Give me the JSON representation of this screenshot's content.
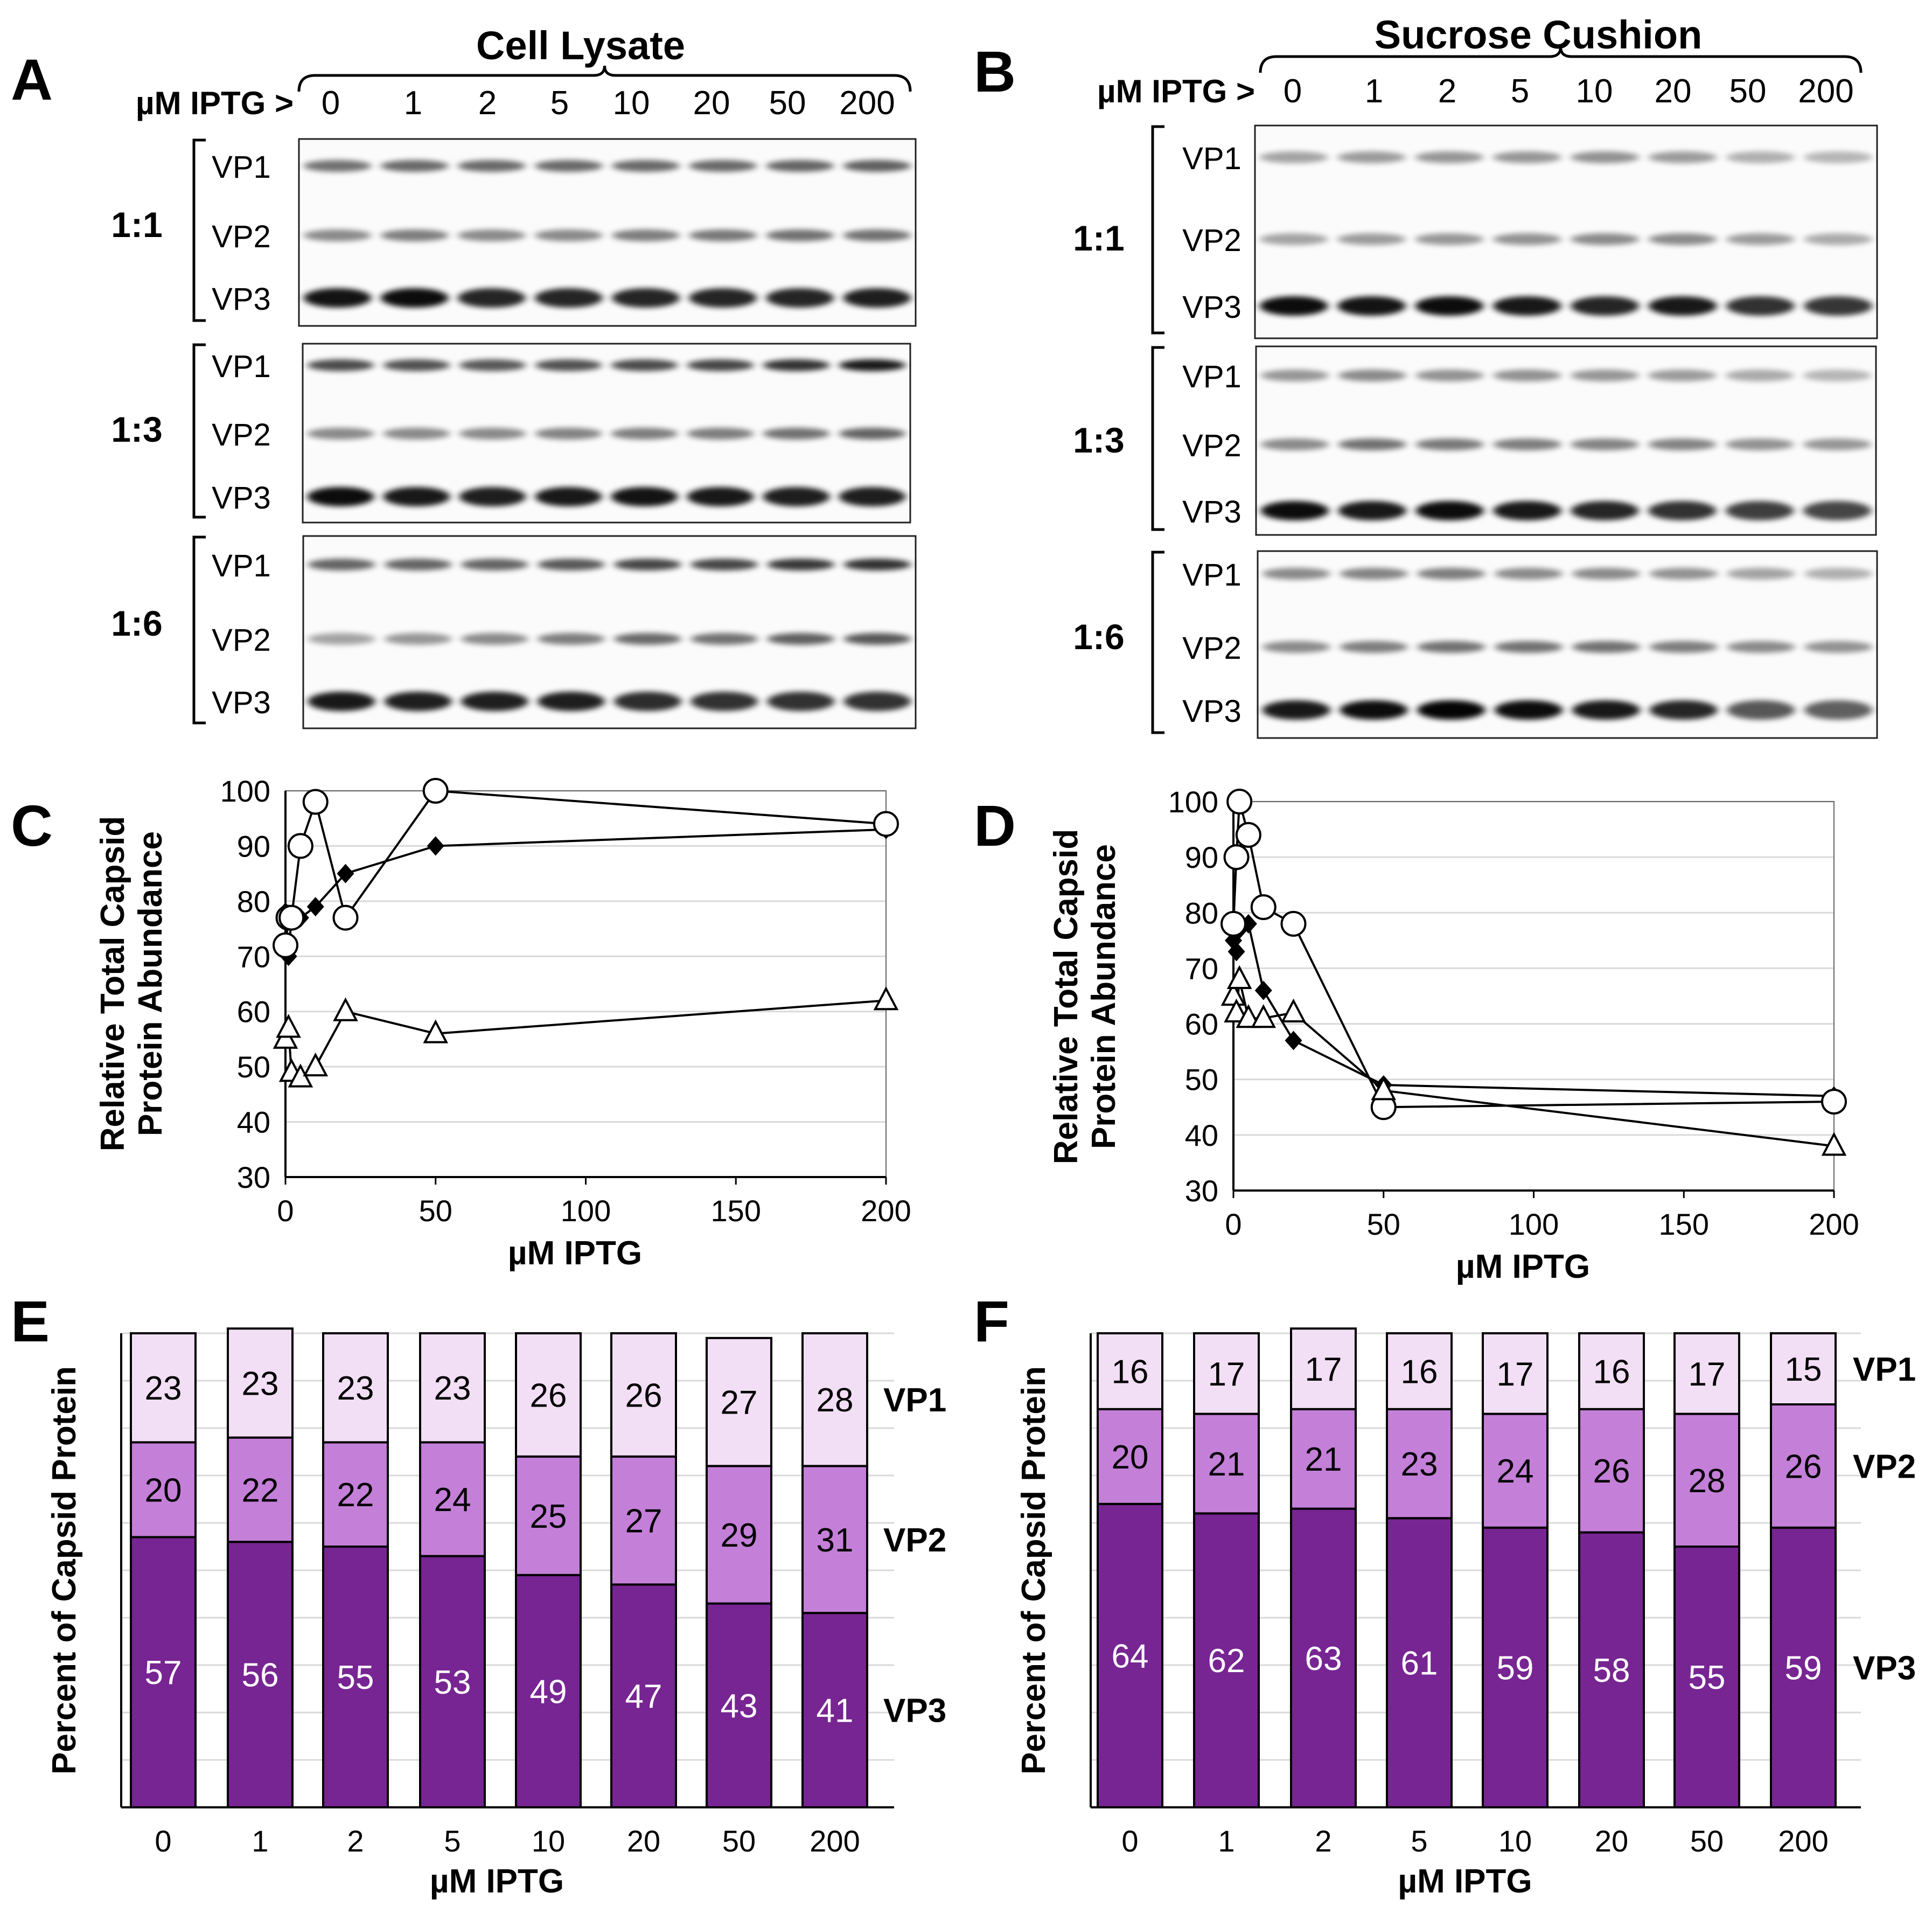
{
  "panels": {
    "A": {
      "letter": "A",
      "title": "Cell Lysate",
      "ratios": [
        "1:1",
        "1:3",
        "1:6"
      ]
    },
    "B": {
      "letter": "B",
      "title": "Sucrose Cushion",
      "ratios": [
        "1:1",
        "1:3",
        "1:6"
      ]
    }
  },
  "blot": {
    "iptg_label": "µM IPTG >",
    "lanes": [
      "0",
      "1",
      "2",
      "5",
      "10",
      "20",
      "50",
      "200"
    ],
    "bands": [
      "VP1",
      "VP2",
      "VP3"
    ]
  },
  "colors": {
    "vp1": "#f2def5",
    "vp2": "#c47fd8",
    "vp3": "#772592",
    "line": "#000000",
    "grid": "#d9d9d9"
  },
  "chart_data": [
    {
      "panel": "C",
      "type": "scatter",
      "xlabel": "µM IPTG",
      "ylabel": [
        "Relative Total Capsid",
        "Protein Abundance"
      ],
      "xlim": [
        0,
        200
      ],
      "ylim": [
        30,
        100
      ],
      "xticks": [
        0,
        50,
        100,
        150,
        200
      ],
      "yticks": [
        30,
        40,
        50,
        60,
        70,
        80,
        90,
        100
      ],
      "grid": true,
      "series": [
        {
          "marker": "diamond",
          "x": [
            0,
            1,
            2,
            5,
            10,
            20,
            50,
            200
          ],
          "y": [
            78,
            70,
            77,
            77,
            79,
            85,
            90,
            93
          ]
        },
        {
          "marker": "circle",
          "x": [
            0,
            1,
            2,
            5,
            10,
            20,
            50,
            200
          ],
          "y": [
            72,
            77,
            77,
            90,
            98,
            77,
            100,
            94
          ]
        },
        {
          "marker": "triangle",
          "x": [
            0,
            1,
            2,
            5,
            10,
            20,
            50,
            200
          ],
          "y": [
            55,
            57,
            49,
            48,
            50,
            60,
            56,
            62
          ]
        }
      ]
    },
    {
      "panel": "D",
      "type": "scatter",
      "xlabel": "µM IPTG",
      "ylabel": [
        "Relative Total Capsid",
        "Protein Abundance"
      ],
      "xlim": [
        0,
        200
      ],
      "ylim": [
        30,
        100
      ],
      "xticks": [
        0,
        50,
        100,
        150,
        200
      ],
      "yticks": [
        30,
        40,
        50,
        60,
        70,
        80,
        90,
        100
      ],
      "grid": true,
      "series": [
        {
          "marker": "diamond",
          "x": [
            0,
            1,
            2,
            5,
            10,
            20,
            50,
            200
          ],
          "y": [
            75,
            73,
            77,
            78,
            66,
            57,
            49,
            47
          ]
        },
        {
          "marker": "circle",
          "x": [
            0,
            1,
            2,
            5,
            10,
            20,
            50,
            200
          ],
          "y": [
            78,
            90,
            100,
            94,
            81,
            78,
            45,
            46
          ]
        },
        {
          "marker": "triangle",
          "x": [
            0,
            1,
            2,
            5,
            10,
            20,
            50,
            200
          ],
          "y": [
            65,
            62,
            68,
            61,
            61,
            62,
            48,
            38
          ]
        }
      ]
    },
    {
      "panel": "E",
      "type": "bar",
      "stacked": true,
      "xlabel": "µM IPTG",
      "ylabel": "Percent of Capsid Protein",
      "categories": [
        "0",
        "1",
        "2",
        "5",
        "10",
        "20",
        "50",
        "200"
      ],
      "ylim": [
        0,
        100
      ],
      "series": [
        {
          "name": "VP3",
          "values": [
            57,
            56,
            55,
            53,
            49,
            47,
            43,
            41
          ]
        },
        {
          "name": "VP2",
          "values": [
            20,
            22,
            22,
            24,
            25,
            27,
            29,
            31
          ]
        },
        {
          "name": "VP1",
          "values": [
            23,
            23,
            23,
            23,
            26,
            26,
            27,
            28
          ]
        }
      ]
    },
    {
      "panel": "F",
      "type": "bar",
      "stacked": true,
      "xlabel": "µM IPTG",
      "ylabel": "Percent of Capsid Protein",
      "categories": [
        "0",
        "1",
        "2",
        "5",
        "10",
        "20",
        "50",
        "200"
      ],
      "ylim": [
        0,
        100
      ],
      "series": [
        {
          "name": "VP3",
          "values": [
            64,
            62,
            63,
            61,
            59,
            58,
            55,
            59
          ]
        },
        {
          "name": "VP2",
          "values": [
            20,
            21,
            21,
            23,
            24,
            26,
            28,
            26
          ]
        },
        {
          "name": "VP1",
          "values": [
            16,
            17,
            17,
            16,
            17,
            16,
            17,
            15
          ]
        }
      ]
    }
  ],
  "blot_intensity": {
    "A": [
      [
        [
          0.55,
          0.58,
          0.58,
          0.58,
          0.58,
          0.58,
          0.6,
          0.62
        ],
        [
          0.45,
          0.5,
          0.45,
          0.45,
          0.5,
          0.52,
          0.55,
          0.55
        ],
        [
          0.92,
          0.95,
          0.85,
          0.85,
          0.85,
          0.85,
          0.85,
          0.88
        ]
      ],
      [
        [
          0.7,
          0.68,
          0.65,
          0.68,
          0.7,
          0.72,
          0.8,
          0.9
        ],
        [
          0.45,
          0.45,
          0.45,
          0.48,
          0.5,
          0.5,
          0.55,
          0.6
        ],
        [
          0.95,
          0.9,
          0.88,
          0.9,
          0.92,
          0.9,
          0.88,
          0.88
        ]
      ],
      [
        [
          0.6,
          0.6,
          0.6,
          0.65,
          0.72,
          0.72,
          0.78,
          0.8
        ],
        [
          0.35,
          0.4,
          0.45,
          0.5,
          0.58,
          0.55,
          0.62,
          0.65
        ],
        [
          0.9,
          0.88,
          0.88,
          0.88,
          0.82,
          0.8,
          0.8,
          0.8
        ]
      ]
    ],
    "B": [
      [
        [
          0.35,
          0.38,
          0.4,
          0.4,
          0.42,
          0.38,
          0.3,
          0.28
        ],
        [
          0.35,
          0.38,
          0.4,
          0.42,
          0.45,
          0.45,
          0.38,
          0.32
        ],
        [
          0.95,
          0.92,
          0.95,
          0.9,
          0.85,
          0.9,
          0.8,
          0.78
        ]
      ],
      [
        [
          0.4,
          0.45,
          0.42,
          0.42,
          0.4,
          0.38,
          0.32,
          0.28
        ],
        [
          0.45,
          0.55,
          0.52,
          0.5,
          0.48,
          0.48,
          0.42,
          0.4
        ],
        [
          0.95,
          0.9,
          0.95,
          0.9,
          0.85,
          0.8,
          0.75,
          0.72
        ]
      ],
      [
        [
          0.45,
          0.48,
          0.5,
          0.45,
          0.45,
          0.42,
          0.35,
          0.3
        ],
        [
          0.45,
          0.5,
          0.55,
          0.55,
          0.55,
          0.5,
          0.45,
          0.42
        ],
        [
          0.9,
          0.95,
          0.98,
          0.95,
          0.9,
          0.85,
          0.65,
          0.62
        ]
      ]
    ]
  }
}
